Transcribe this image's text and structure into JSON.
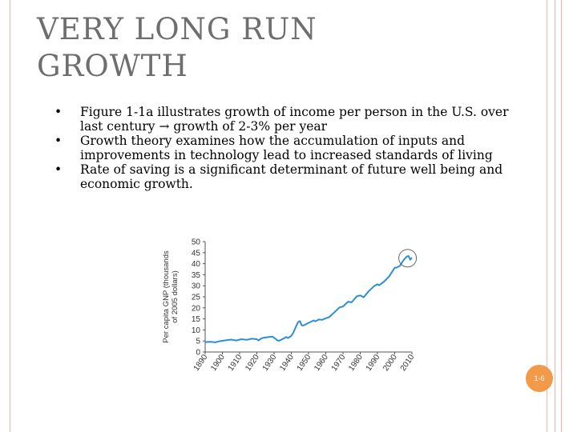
{
  "slide": {
    "title": "VERY LONG RUN GROWTH",
    "bullets": [
      "Figure 1-1a illustrates growth of income per person in the U.S. over last century → growth of 2-3% per year",
      "Growth theory examines how the accumulation of inputs and improvements in technology lead to increased standards of living",
      "Rate of saving is a significant determinant of future well being and economic growth."
    ],
    "page_number": "1-6"
  },
  "colors": {
    "line": "#2b8fd6",
    "accent": "#f29a4a",
    "frame": "#e8b8a8",
    "title": "#6e6e6e"
  },
  "chart_data": {
    "type": "line",
    "title": "",
    "ylabel": "Per capita GNP (thousands of 2005 dollars)",
    "xlabel": "",
    "x_ticks": [
      "1890",
      "1900",
      "1910",
      "1920",
      "1930",
      "1940",
      "1950",
      "1960",
      "1970",
      "1980",
      "1990",
      "2000",
      "2010"
    ],
    "y_ticks": [
      "0",
      "5",
      "10",
      "15",
      "20",
      "25",
      "30",
      "35",
      "40",
      "45",
      "50"
    ],
    "xlim": [
      1890,
      2010
    ],
    "ylim": [
      0,
      50
    ],
    "series": [
      {
        "name": "Per capita GNP",
        "x": [
          1890,
          1893,
          1896,
          1899,
          1902,
          1905,
          1908,
          1911,
          1914,
          1917,
          1920,
          1921,
          1923,
          1926,
          1929,
          1930,
          1931,
          1932,
          1933,
          1935,
          1937,
          1938,
          1940,
          1941,
          1942,
          1943,
          1944,
          1945,
          1946,
          1947,
          1950,
          1953,
          1954,
          1956,
          1958,
          1960,
          1962,
          1965,
          1968,
          1970,
          1973,
          1975,
          1978,
          1980,
          1982,
          1985,
          1988,
          1990,
          1991,
          1994,
          1997,
          2000,
          2001,
          2003,
          2005,
          2007,
          2008,
          2009,
          2010
        ],
        "values": [
          4.5,
          4.6,
          4.4,
          5.0,
          5.3,
          5.6,
          5.2,
          5.8,
          5.5,
          6.0,
          5.8,
          5.2,
          6.3,
          6.7,
          7.0,
          6.4,
          5.9,
          5.2,
          5.1,
          5.9,
          6.8,
          6.3,
          7.3,
          8.5,
          10.2,
          12.0,
          13.6,
          14.0,
          12.1,
          12.0,
          13.2,
          14.3,
          13.9,
          14.7,
          14.6,
          15.3,
          15.8,
          18.0,
          20.2,
          20.6,
          22.8,
          22.5,
          25.2,
          25.6,
          24.8,
          27.6,
          29.8,
          30.7,
          30.2,
          32.0,
          34.5,
          38.2,
          38.2,
          39.0,
          41.5,
          43.2,
          43.5,
          41.8,
          42.7
        ]
      }
    ],
    "annotation": "circle highlighting 2007-2009 peak and dip"
  }
}
